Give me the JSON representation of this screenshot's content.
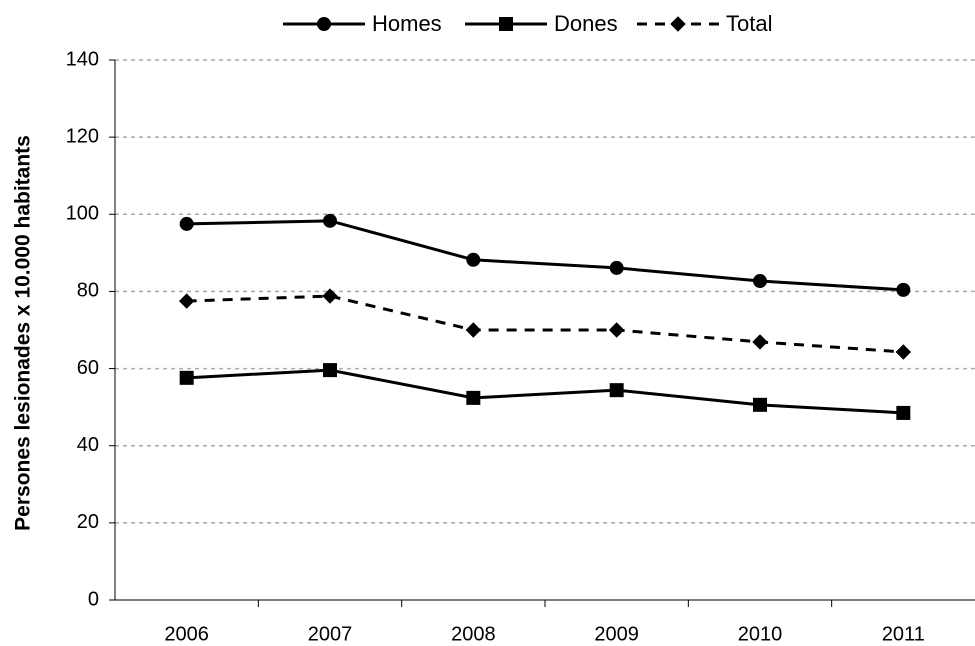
{
  "chart_data": {
    "type": "line",
    "y_label": "Persones lesionades x 10.000 habitants",
    "categories": [
      "2006",
      "2007",
      "2008",
      "2009",
      "2010",
      "2011"
    ],
    "series": [
      {
        "name": "Homes",
        "color": "#000000",
        "marker": "circle",
        "dashed": false,
        "values": [
          97.5,
          98.3,
          88.2,
          86.1,
          82.7,
          80.4
        ]
      },
      {
        "name": "Dones",
        "color": "#000000",
        "marker": "square",
        "dashed": false,
        "values": [
          57.6,
          59.6,
          52.4,
          54.4,
          50.6,
          48.5
        ]
      },
      {
        "name": "Total",
        "color": "#000000",
        "marker": "diamond",
        "dashed": true,
        "values": [
          77.5,
          78.8,
          70.0,
          70.0,
          66.9,
          64.3
        ]
      }
    ],
    "ylim": [
      0,
      140
    ],
    "yticks": [
      0,
      20,
      40,
      60,
      80,
      100,
      120,
      140
    ],
    "grid": true,
    "legend": "top"
  }
}
